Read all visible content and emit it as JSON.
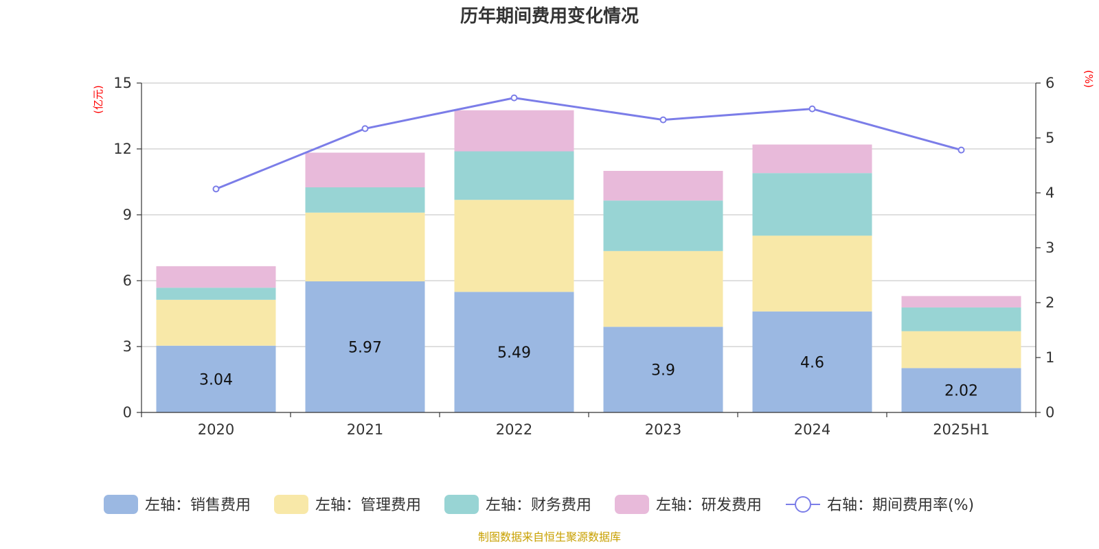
{
  "chart_data": {
    "type": "bar",
    "stacked": true,
    "title": "历年期间费用变化情况",
    "categories": [
      "2020",
      "2021",
      "2022",
      "2023",
      "2024",
      "2025H1"
    ],
    "y_left": {
      "unit": "(亿元)",
      "min": 0,
      "max": 15,
      "ticks": [
        0,
        3,
        6,
        9,
        12,
        15
      ]
    },
    "y_right": {
      "unit": "(%)",
      "min": 0,
      "max": 6,
      "ticks": [
        0,
        1,
        2,
        3,
        4,
        5,
        6
      ]
    },
    "grid": true,
    "legend_position": "bottom",
    "series": [
      {
        "name": "左轴：销售费用",
        "axis": "left",
        "color": "#9bb8e2",
        "values": [
          3.04,
          5.97,
          5.49,
          3.9,
          4.6,
          2.02
        ],
        "show_labels": true
      },
      {
        "name": "左轴：管理费用",
        "axis": "left",
        "color": "#f8e8a8",
        "values": [
          2.09,
          3.13,
          4.19,
          3.45,
          3.45,
          1.68
        ],
        "show_labels": false
      },
      {
        "name": "左轴：财务费用",
        "axis": "left",
        "color": "#98d4d4",
        "values": [
          0.55,
          1.15,
          2.21,
          2.3,
          2.85,
          1.08
        ],
        "show_labels": false
      },
      {
        "name": "左轴：研发费用",
        "axis": "left",
        "color": "#e8bada",
        "values": [
          0.98,
          1.58,
          1.87,
          1.35,
          1.3,
          0.52
        ],
        "show_labels": false
      }
    ],
    "line": {
      "name": "右轴：期间费用率(%)",
      "axis": "right",
      "color": "#7b7de8",
      "values": [
        4.07,
        5.17,
        5.73,
        5.33,
        5.53,
        4.78
      ]
    }
  },
  "source": "制图数据来自恒生聚源数据库"
}
